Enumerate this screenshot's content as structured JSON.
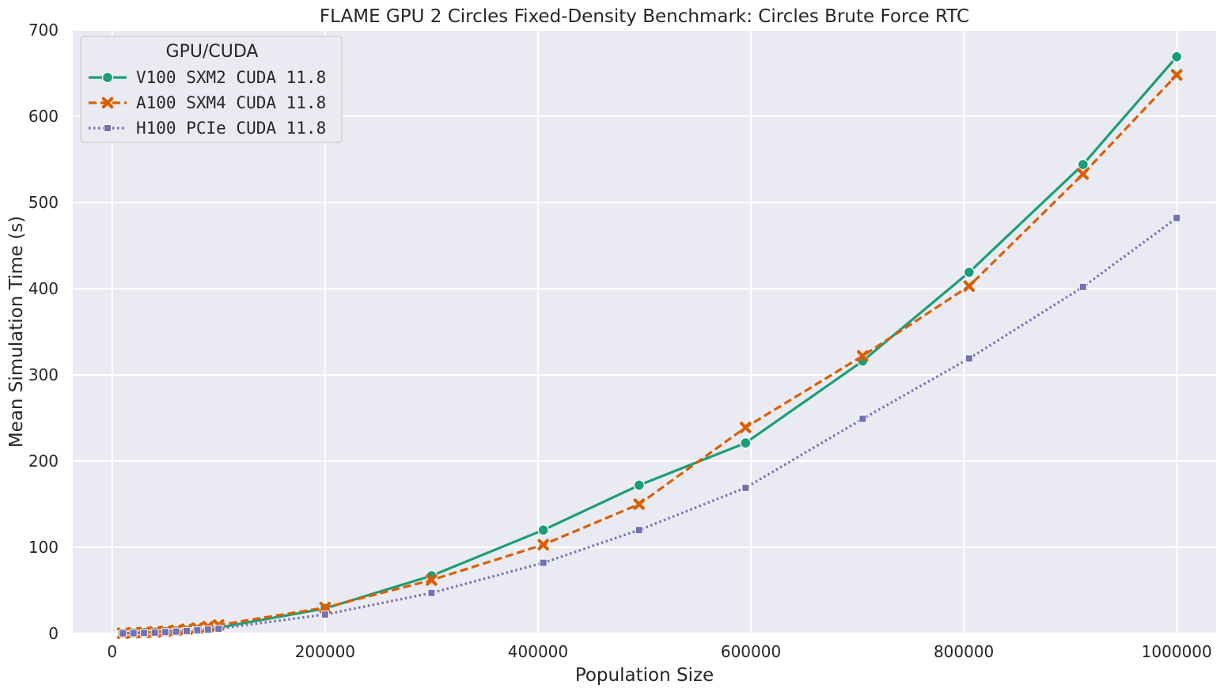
{
  "chart_data": {
    "type": "line",
    "title": "FLAME GPU 2 Circles Fixed-Density Benchmark: Circles Brute Force RTC",
    "xlabel": "Population Size",
    "ylabel": "Mean Simulation Time (s)",
    "xlim": [
      -37000,
      1037000
    ],
    "ylim": [
      0,
      700
    ],
    "xticks": [
      0,
      200000,
      400000,
      600000,
      800000,
      1000000
    ],
    "xtick_labels": [
      "0",
      "200000",
      "400000",
      "600000",
      "800000",
      "1000000"
    ],
    "yticks": [
      0,
      100,
      200,
      300,
      400,
      500,
      600,
      700
    ],
    "ytick_labels": [
      "0",
      "100",
      "200",
      "300",
      "400",
      "500",
      "600",
      "700"
    ],
    "grid": true,
    "legend": {
      "title": "GPU/CUDA",
      "placement": "top-left"
    },
    "x": [
      10000,
      20000,
      30000,
      40000,
      50000,
      60000,
      70000,
      80000,
      90000,
      100000,
      200000,
      300000,
      405000,
      495000,
      595000,
      705000,
      805000,
      912000,
      1000000
    ],
    "series": [
      {
        "name": "V100 SXM2 CUDA 11.8",
        "color": "#1b9e77",
        "marker": "circle",
        "dash": "solid",
        "values": [
          0.3,
          0.6,
          1.0,
          1.5,
          2.0,
          2.8,
          3.6,
          4.5,
          5.5,
          6.8,
          29,
          67,
          120,
          172,
          221,
          316,
          419,
          544,
          669
        ]
      },
      {
        "name": "A100 SXM4 CUDA 11.8",
        "color": "#d95f02",
        "marker": "x",
        "dash": "dashed",
        "values": [
          0.3,
          0.7,
          1.2,
          1.8,
          2.6,
          3.6,
          4.9,
          6.2,
          8.0,
          9.8,
          30,
          62,
          103,
          150,
          239,
          322,
          403,
          533,
          648
        ]
      },
      {
        "name": "H100 PCIe CUDA 11.8",
        "color": "#7570b3",
        "marker": "square",
        "dash": "dotted",
        "values": [
          0.2,
          0.4,
          0.7,
          1.1,
          1.6,
          2.2,
          2.9,
          3.7,
          4.6,
          5.6,
          22,
          47,
          82,
          120,
          169,
          249,
          319,
          402,
          482
        ]
      }
    ]
  }
}
